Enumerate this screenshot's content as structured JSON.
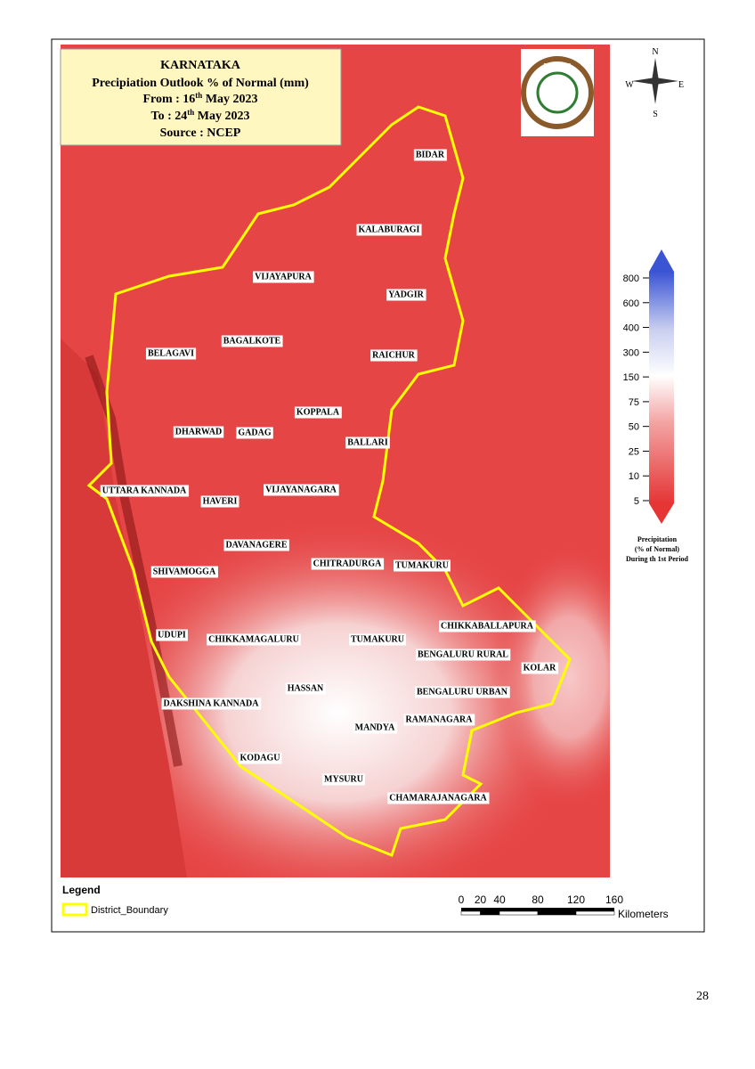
{
  "title": {
    "line1": "KARNATAKA",
    "line2": "Precipiation Outlook % of Normal (mm)",
    "from_label": "From  : 16",
    "from_sup": "th",
    "from_rest": " May 2023",
    "to_label": "To      : 24",
    "to_sup": "th",
    "to_rest": " May 2023",
    "source": "Source : NCEP"
  },
  "logo": "KSNDMC",
  "compass": {
    "n": "N",
    "e": "E",
    "s": "S",
    "w": "W"
  },
  "districts": [
    "BIDAR",
    "KALABURAGI",
    "VIJAYAPURA",
    "YADGIR",
    "BAGALKOTE",
    "BELAGAVI",
    "RAICHUR",
    "KOPPALA",
    "DHARWAD",
    "GADAG",
    "BALLARI",
    "UTTARA KANNADA",
    "HAVERI",
    "VIJAYANAGARA",
    "DAVANAGERE",
    "CHITRADURGA",
    "TUMAKURU",
    "SHIVAMOGGA",
    "CHIKKABALLAPURA",
    "UDUPI",
    "CHIKKAMAGALURU",
    "TUMAKURU",
    "BENGALURU RURAL",
    "KOLAR",
    "BENGALURU URBAN",
    "HASSAN",
    "DAKSHINA KANNADA",
    "RAMANAGARA",
    "MANDYA",
    "KODAGU",
    "MYSURU",
    "CHAMARAJANAGARA"
  ],
  "colorbar": {
    "ticks": [
      800,
      600,
      400,
      300,
      150,
      75,
      50,
      25,
      10,
      5
    ],
    "title": [
      "Precipitation",
      "(% of Normal)",
      "During th 1st Period"
    ]
  },
  "legend": {
    "title": "Legend",
    "item": "District_Boundary"
  },
  "scale": {
    "ticks": [
      0,
      20,
      40,
      80,
      120,
      160
    ],
    "unit": "Kilometers"
  },
  "page_number": "28"
}
